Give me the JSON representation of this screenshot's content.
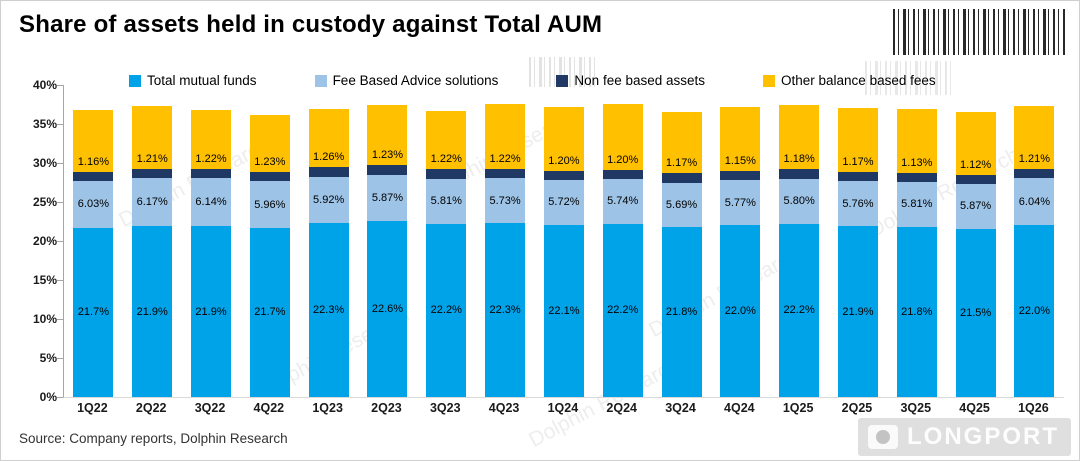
{
  "title": "Share of assets held in custody against Total AUM",
  "source": "Source:  Company reports, Dolphin Research",
  "watermark": {
    "diagonal_text": "Dolphin Research",
    "brand": "LONGPORT"
  },
  "chart_data": {
    "type": "bar",
    "stacked": true,
    "title": "Share of assets held in custody against Total AUM",
    "xlabel": "",
    "ylabel": "",
    "ylim": [
      0,
      40
    ],
    "grid": false,
    "legend_position": "top",
    "yticks": [
      "0%",
      "5%",
      "10%",
      "15%",
      "20%",
      "25%",
      "30%",
      "35%",
      "40%"
    ],
    "categories": [
      "1Q22",
      "2Q22",
      "3Q22",
      "4Q22",
      "1Q23",
      "2Q23",
      "3Q23",
      "4Q23",
      "1Q24",
      "2Q24",
      "3Q24",
      "4Q24",
      "1Q25",
      "2Q25",
      "3Q25",
      "4Q25",
      "1Q26"
    ],
    "series": [
      {
        "name": "Total mutual funds",
        "color": "#00A2E8",
        "label_placement": "center",
        "values": [
          21.7,
          21.9,
          21.9,
          21.7,
          22.3,
          22.6,
          22.2,
          22.3,
          22.1,
          22.2,
          21.8,
          22.0,
          22.2,
          21.9,
          21.8,
          21.5,
          22.0
        ],
        "labels": [
          "21.7%",
          "21.9%",
          "21.9%",
          "21.7%",
          "22.3%",
          "22.6%",
          "22.2%",
          "22.3%",
          "22.1%",
          "22.2%",
          "21.8%",
          "22.0%",
          "22.2%",
          "21.9%",
          "21.8%",
          "21.5%",
          "22.0%"
        ]
      },
      {
        "name": "Fee Based Advice solutions",
        "color": "#9DC3E6",
        "label_placement": "center",
        "values": [
          6.03,
          6.17,
          6.14,
          5.96,
          5.92,
          5.87,
          5.81,
          5.73,
          5.72,
          5.74,
          5.69,
          5.77,
          5.8,
          5.76,
          5.81,
          5.87,
          6.04
        ],
        "labels": [
          "6.03%",
          "6.17%",
          "6.14%",
          "5.96%",
          "5.92%",
          "5.87%",
          "5.81%",
          "5.73%",
          "5.72%",
          "5.74%",
          "5.69%",
          "5.77%",
          "5.80%",
          "5.76%",
          "5.81%",
          "5.87%",
          "6.04%"
        ]
      },
      {
        "name": "Non fee based assets",
        "color": "#1F3864",
        "label_placement": "above",
        "values": [
          1.16,
          1.21,
          1.22,
          1.23,
          1.26,
          1.23,
          1.22,
          1.22,
          1.2,
          1.2,
          1.17,
          1.15,
          1.18,
          1.17,
          1.13,
          1.12,
          1.21
        ],
        "labels": [
          "1.16%",
          "1.21%",
          "1.22%",
          "1.23%",
          "1.26%",
          "1.23%",
          "1.22%",
          "1.22%",
          "1.20%",
          "1.20%",
          "1.17%",
          "1.15%",
          "1.18%",
          "1.17%",
          "1.13%",
          "1.12%",
          "1.21%"
        ]
      },
      {
        "name": "Other balance based fees",
        "color": "#FFC000",
        "label_placement": "none",
        "estimated": true,
        "values": [
          7.9,
          8.0,
          7.6,
          7.3,
          7.5,
          7.7,
          7.5,
          8.3,
          8.2,
          8.4,
          7.9,
          8.2,
          8.2,
          8.2,
          8.2,
          8.0,
          8.0
        ]
      }
    ]
  }
}
